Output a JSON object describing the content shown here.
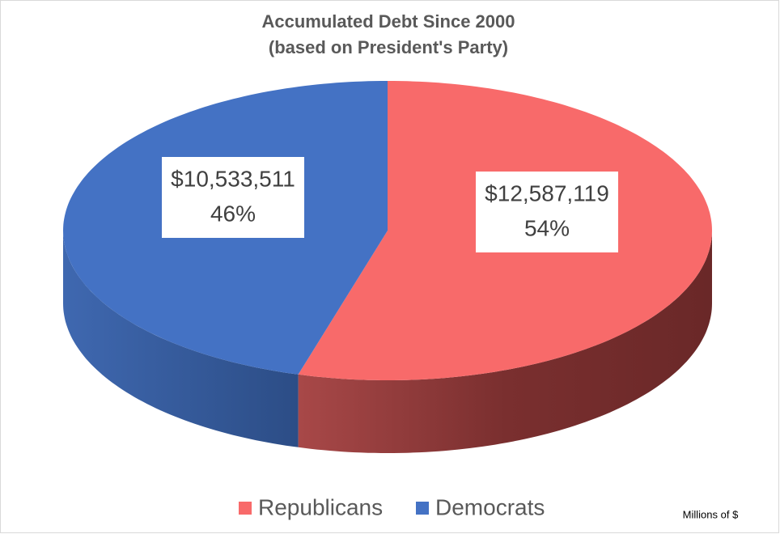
{
  "chart_data": {
    "type": "pie3d",
    "title": "Accumulated Debt Since 2000",
    "subtitle": "(based on President's Party)",
    "categories": [
      "Republicans",
      "Democrats"
    ],
    "values": [
      12587119,
      10533511
    ],
    "value_labels": [
      "$12,587,119",
      "$10,533,511"
    ],
    "percents": [
      54,
      46
    ],
    "percent_labels": [
      "54%",
      "46%"
    ],
    "colors": [
      "#f86a6a",
      "#4472c4"
    ],
    "unit_note": "Millions of $",
    "legend": "bottom"
  }
}
